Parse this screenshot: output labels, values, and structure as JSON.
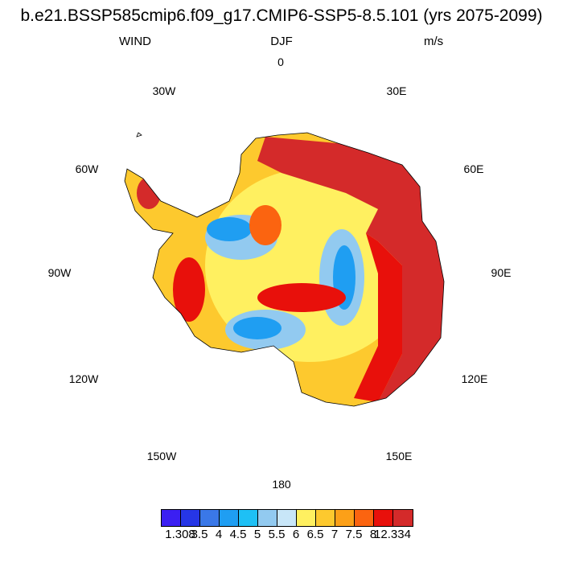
{
  "title": "b.e21.BSSP585cmip6.f09_g17.CMIP6-SSP5-8.5.101 (yrs 2075-2099)",
  "variable": "WIND",
  "season": "DJF",
  "units": "m/s",
  "longitude_labels": {
    "lon_0": "0",
    "lon_30e": "30E",
    "lon_60e": "60E",
    "lon_90e": "90E",
    "lon_120e": "120E",
    "lon_150e": "150E",
    "lon_180": "180",
    "lon_150w": "150W",
    "lon_120w": "120W",
    "lon_90w": "90W",
    "lon_60w": "60W",
    "lon_30w": "30W"
  },
  "colorbar": {
    "colors": [
      "#3b1ff2",
      "#2636e6",
      "#3a78e8",
      "#1f9ef2",
      "#1ec0f5",
      "#92caf0",
      "#c8e6f8",
      "#fff060",
      "#fdc92e",
      "#fca018",
      "#fb6410",
      "#e8100b",
      "#d42a2a"
    ],
    "labels": [
      "1.308",
      "3.5",
      "4",
      "4.5",
      "5",
      "5.5",
      "6",
      "6.5",
      "7",
      "7.5",
      "8",
      "12.334"
    ]
  }
}
